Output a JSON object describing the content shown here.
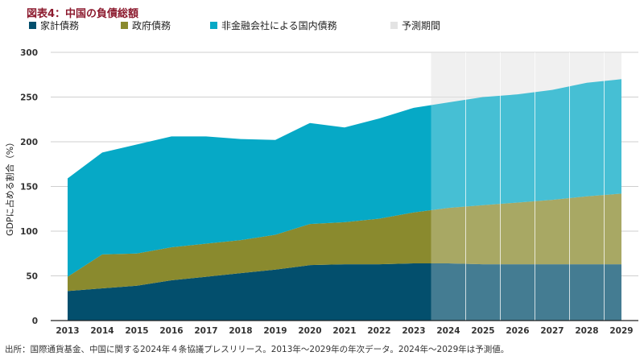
{
  "title": "図表4：中国の負債総額",
  "legend": [
    {
      "label": "家計債務",
      "color": "#034f6d"
    },
    {
      "label": "政府債務",
      "color": "#8a8a2e"
    },
    {
      "label": "非金融会社による国内債務",
      "color": "#06a9c6"
    },
    {
      "label": "予測期間",
      "color": "#e3e3e3"
    }
  ],
  "source": "出所：国際通貨基金、中国に関する2024年４条協議プレスリリース。2013年〜2029年の年次データ。2024年〜2029年は予測値。",
  "chart_data": {
    "type": "area",
    "stacked": true,
    "x": [
      "2013",
      "2014",
      "2015",
      "2016",
      "2017",
      "2018",
      "2019",
      "2020",
      "2021",
      "2022",
      "2023",
      "2024",
      "2025",
      "2026",
      "2027",
      "2028",
      "2029"
    ],
    "series": [
      {
        "name": "家計債務",
        "color": "#034f6d",
        "values": [
          33,
          36,
          39,
          45,
          49,
          53,
          57,
          62,
          63,
          63,
          64,
          64,
          63,
          63,
          63,
          63,
          63
        ]
      },
      {
        "name": "政府債務",
        "color": "#8a8a2e",
        "values": [
          16,
          38,
          36,
          37,
          37,
          37,
          39,
          46,
          47,
          51,
          57,
          62,
          66,
          69,
          72,
          76,
          79
        ]
      },
      {
        "name": "非金融会社による国内債務",
        "color": "#06a9c6",
        "values": [
          110,
          114,
          122,
          124,
          120,
          113,
          106,
          113,
          106,
          112,
          117,
          118,
          121,
          121,
          123,
          127,
          128
        ]
      }
    ],
    "forecast_range": [
      "2024",
      "2029"
    ],
    "forecast_label": "予測期間",
    "ylabel": "GDPに占める割合（%）",
    "ylim": [
      0,
      300
    ],
    "yticks": [
      0,
      50,
      100,
      150,
      200,
      250,
      300
    ],
    "grid": true
  }
}
